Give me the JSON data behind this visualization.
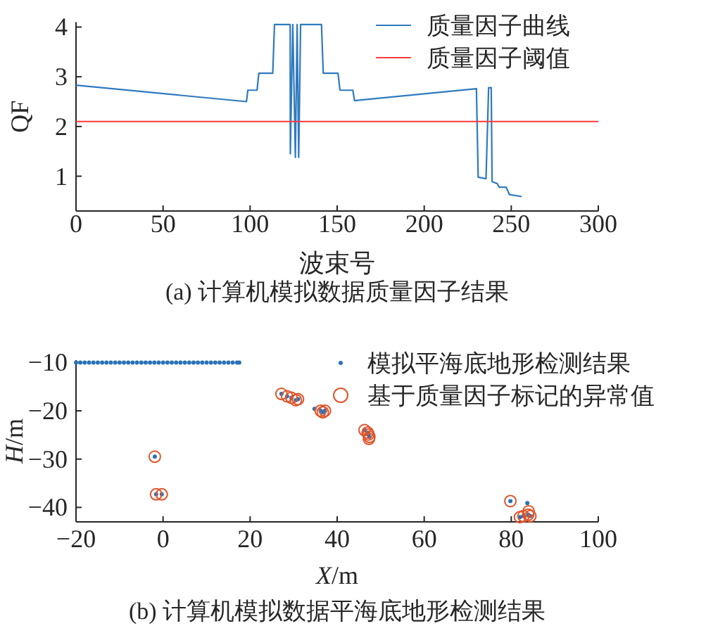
{
  "chart_data": [
    {
      "type": "line",
      "title": "(a) 计算机模拟数据质量因子结果",
      "xlabel": "波束号",
      "ylabel": "QF",
      "xlim": [
        0,
        300
      ],
      "xticks": [
        0,
        50,
        100,
        150,
        200,
        250,
        300
      ],
      "ylim": [
        0.3,
        4.1
      ],
      "yticks": [
        1,
        2,
        3,
        4
      ],
      "legend": "top right",
      "series": [
        {
          "name": "质量因子曲线",
          "color": "#2f7abf",
          "x": [
            0,
            97.9,
            98.7,
            104,
            105,
            113,
            114,
            123,
            123.1,
            124.5,
            126,
            127,
            127.9,
            129,
            141,
            142,
            150.5,
            151.6,
            159,
            160,
            230,
            231,
            235.5,
            237,
            238.5,
            239,
            242,
            243,
            247,
            249,
            256
          ],
          "values": [
            2.83,
            2.5,
            2.73,
            2.73,
            3.07,
            3.07,
            4.05,
            4.05,
            1.45,
            4.05,
            1.38,
            4.05,
            1.38,
            4.05,
            4.05,
            3.07,
            3.07,
            2.73,
            2.73,
            2.52,
            2.76,
            0.98,
            0.95,
            2.78,
            2.78,
            0.89,
            0.85,
            0.78,
            0.78,
            0.63,
            0.59
          ]
        },
        {
          "name": "质量因子阈值",
          "color": "#ff3b3b",
          "x": [
            0,
            300
          ],
          "values": [
            2.1,
            2.1
          ]
        }
      ]
    },
    {
      "type": "scatter",
      "title": "(b) 计算机模拟数据平海底地形检测结果",
      "xlabel": "*X*/m",
      "ylabel": "*H*/m",
      "xlim": [
        -20,
        100
      ],
      "xticks": [
        -20,
        0,
        20,
        40,
        60,
        80,
        100
      ],
      "ylim": [
        -43,
        -9.5
      ],
      "yticks": [
        -40,
        -30,
        -20,
        -10
      ],
      "legend": "top right",
      "marker": "circle",
      "series": [
        {
          "name": "模拟平海底地形检测结果",
          "color": "#2a72b8",
          "x": [
            -20,
            -19,
            -18,
            -17,
            -16,
            -15,
            -14,
            -13,
            -12,
            -11,
            -10,
            -9,
            -8,
            -7,
            -6,
            -5,
            -4,
            -3,
            -2,
            -1,
            0,
            1,
            2,
            3,
            4,
            5,
            6,
            7,
            8,
            9,
            10,
            11,
            12,
            13,
            14,
            15,
            16,
            17,
            17.5,
            27.2,
            28.5,
            29.5,
            30.5,
            31,
            34.8,
            36.2,
            36.7,
            37.2,
            46.3,
            47,
            47.2,
            47.4,
            -1.9,
            -1.6,
            -0.3,
            79.8,
            83.7,
            82,
            82.8,
            83.9,
            84.4
          ],
          "values": [
            -10,
            -10,
            -10,
            -10,
            -10,
            -10,
            -10,
            -10,
            -10,
            -10,
            -10,
            -10,
            -10,
            -10,
            -10,
            -10,
            -10,
            -10,
            -10,
            -10,
            -10,
            -10,
            -10,
            -10,
            -10,
            -10,
            -10,
            -10,
            -10,
            -10,
            -10,
            -10,
            -10,
            -10,
            -10,
            -10,
            -10,
            -10,
            -10,
            -16.5,
            -17,
            -17.3,
            -17.8,
            -17.6,
            -19.6,
            -20,
            -20.3,
            -20,
            -24,
            -24.5,
            -24.9,
            -25.4,
            -29.5,
            -37.3,
            -37.3,
            -38.7,
            -39.1,
            -42,
            -41.8,
            -41.5,
            -41.8
          ]
        },
        {
          "name": "基于质量因子标记的异常值",
          "color": "#e0552a",
          "x": [
            27.2,
            28.5,
            29.5,
            30.5,
            31,
            36.2,
            36.7,
            37.2,
            46.3,
            47,
            47.2,
            47.4,
            47.3,
            -1.9,
            -1.6,
            -0.3,
            79.8,
            82,
            82.8,
            83.9,
            84.4,
            84
          ],
          "values": [
            -16.5,
            -17,
            -17.3,
            -17.8,
            -17.6,
            -20,
            -20.3,
            -20,
            -24,
            -24.5,
            -24.9,
            -25.4,
            -25.8,
            -29.5,
            -37.3,
            -37.3,
            -38.7,
            -42,
            -41.8,
            -41.5,
            -41.8,
            -40.8
          ]
        }
      ]
    }
  ]
}
